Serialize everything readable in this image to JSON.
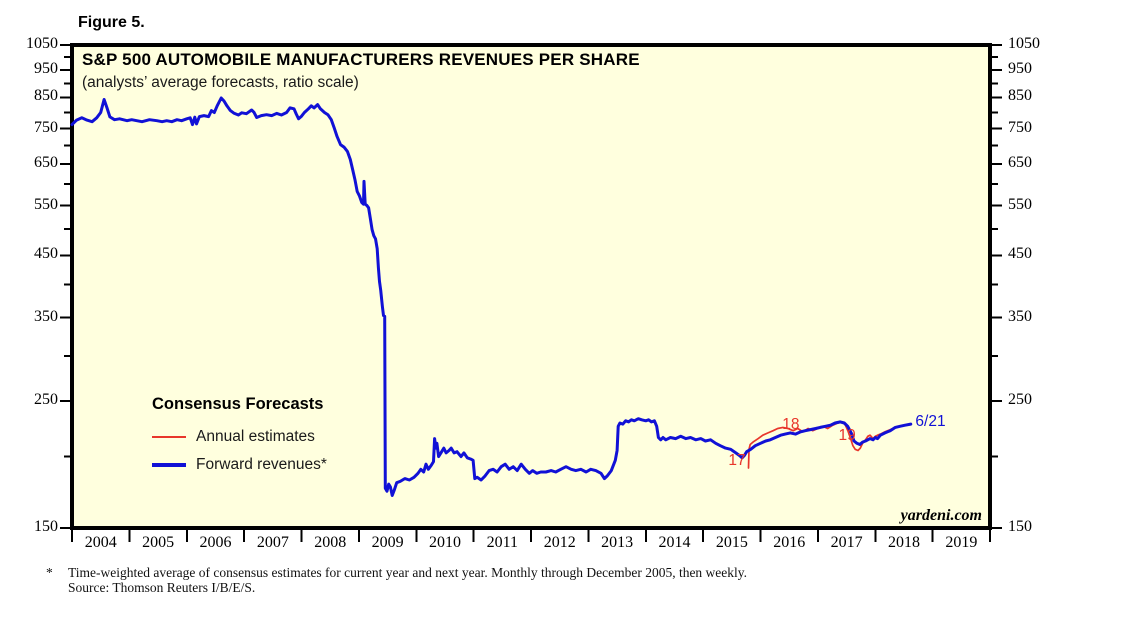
{
  "figure_label": "Figure 5.",
  "chart": {
    "title": "S&P 500 AUTOMOBILE MANUFACTURERS REVENUES PER SHARE",
    "subtitle": "(analysts’ average forecasts, ratio scale)",
    "watermark": "yardeni.com",
    "legend": {
      "title": "Consensus Forecasts",
      "items": [
        {
          "label": "Annual estimates",
          "color": "#e8362b",
          "thickness": 2
        },
        {
          "label": "Forward revenues*",
          "color": "#1111d6",
          "thickness": 4
        }
      ]
    }
  },
  "footnote": {
    "marker": "*",
    "line1": "Time-weighted average of consensus estimates for current year and next year. Monthly through December 2005, then weekly.",
    "line2": "Source: Thomson Reuters I/B/E/S."
  },
  "chart_data": {
    "type": "line",
    "title": "S&P 500 Automobile Manufacturers Revenues Per Share (analysts' average forecasts, ratio scale)",
    "x_range": [
      2004,
      2020
    ],
    "y_range": [
      150,
      1050
    ],
    "y_scale": "log",
    "grid": false,
    "plot_bg": "#ffffde",
    "frame_color": "#000000",
    "y_ticks_major": [
      150,
      250,
      350,
      450,
      550,
      650,
      750,
      850,
      950,
      1050
    ],
    "y_ticks_minor": [
      200,
      300,
      400,
      500,
      600,
      700,
      800,
      900,
      1000
    ],
    "x_tick_years": [
      "2004",
      "2005",
      "2006",
      "2007",
      "2008",
      "2009",
      "2010",
      "2011",
      "2012",
      "2013",
      "2014",
      "2015",
      "2016",
      "2017",
      "2018",
      "2019"
    ],
    "annotations": [
      {
        "text": "17",
        "t": 2015.59,
        "v": 196,
        "color": "#e8362b",
        "anchor": "middle"
      },
      {
        "text": "18",
        "t": 2016.53,
        "v": 226,
        "color": "#e8362b",
        "anchor": "middle"
      },
      {
        "text": "19",
        "t": 2017.51,
        "v": 216,
        "color": "#e8362b",
        "anchor": "middle"
      },
      {
        "text": "6/21",
        "t": 2018.7,
        "v": 229,
        "color": "#1111d6",
        "anchor": "start"
      }
    ],
    "series": [
      {
        "name": "Annual estimates",
        "color": "#e8362b",
        "width": 1.7,
        "points": [
          [
            2015.79,
            191
          ],
          [
            2015.8,
            206
          ],
          [
            2015.82,
            210
          ],
          [
            2015.87,
            212
          ],
          [
            2015.96,
            215
          ],
          [
            2016.04,
            218
          ],
          [
            2016.13,
            220
          ],
          [
            2016.22,
            222
          ],
          [
            2016.3,
            224
          ],
          [
            2016.39,
            225
          ],
          [
            2016.48,
            224
          ],
          [
            2016.57,
            222
          ],
          [
            2016.65,
            224
          ],
          [
            2016.74,
            221
          ],
          [
            2016.83,
            224
          ],
          [
            2016.91,
            222
          ],
          [
            2017.0,
            224
          ],
          [
            2017.09,
            226
          ],
          [
            2017.17,
            224
          ],
          [
            2017.26,
            227
          ],
          [
            2017.35,
            229
          ],
          [
            2017.43,
            230
          ],
          [
            2017.48,
            227
          ],
          [
            2017.53,
            221
          ],
          [
            2017.57,
            215
          ],
          [
            2017.61,
            209
          ],
          [
            2017.65,
            206
          ],
          [
            2017.7,
            205
          ],
          [
            2017.74,
            207
          ],
          [
            2017.78,
            211
          ],
          [
            2017.83,
            214
          ],
          [
            2017.87,
            217
          ],
          [
            2017.91,
            218
          ],
          [
            2017.96,
            215
          ],
          [
            2018.0,
            217
          ],
          [
            2018.04,
            218
          ],
          [
            2018.09,
            219
          ],
          [
            2018.17,
            221
          ],
          [
            2018.26,
            223
          ],
          [
            2018.35,
            225
          ],
          [
            2018.43,
            226
          ]
        ]
      },
      {
        "name": "Forward revenues*",
        "color": "#1111d6",
        "width": 3,
        "points": [
          [
            2004.0,
            762
          ],
          [
            2004.08,
            776
          ],
          [
            2004.17,
            783
          ],
          [
            2004.26,
            776
          ],
          [
            2004.35,
            771
          ],
          [
            2004.43,
            783
          ],
          [
            2004.5,
            800
          ],
          [
            2004.56,
            843
          ],
          [
            2004.61,
            815
          ],
          [
            2004.66,
            786
          ],
          [
            2004.74,
            777
          ],
          [
            2004.83,
            780
          ],
          [
            2004.96,
            774
          ],
          [
            2005.04,
            777
          ],
          [
            2005.13,
            774
          ],
          [
            2005.22,
            771
          ],
          [
            2005.35,
            777
          ],
          [
            2005.48,
            774
          ],
          [
            2005.57,
            771
          ],
          [
            2005.65,
            774
          ],
          [
            2005.74,
            771
          ],
          [
            2005.83,
            777
          ],
          [
            2005.91,
            774
          ],
          [
            2006.0,
            780
          ],
          [
            2006.06,
            783
          ],
          [
            2006.1,
            762
          ],
          [
            2006.14,
            785
          ],
          [
            2006.17,
            764
          ],
          [
            2006.22,
            787
          ],
          [
            2006.3,
            790
          ],
          [
            2006.38,
            787
          ],
          [
            2006.43,
            806
          ],
          [
            2006.48,
            800
          ],
          [
            2006.53,
            822
          ],
          [
            2006.6,
            848
          ],
          [
            2006.65,
            838
          ],
          [
            2006.7,
            822
          ],
          [
            2006.76,
            806
          ],
          [
            2006.82,
            798
          ],
          [
            2006.9,
            792
          ],
          [
            2006.96,
            799
          ],
          [
            2007.04,
            796
          ],
          [
            2007.13,
            808
          ],
          [
            2007.17,
            801
          ],
          [
            2007.22,
            784
          ],
          [
            2007.3,
            790
          ],
          [
            2007.39,
            793
          ],
          [
            2007.48,
            790
          ],
          [
            2007.57,
            797
          ],
          [
            2007.65,
            792
          ],
          [
            2007.74,
            800
          ],
          [
            2007.8,
            815
          ],
          [
            2007.87,
            812
          ],
          [
            2007.91,
            795
          ],
          [
            2007.95,
            780
          ],
          [
            2008.0,
            788
          ],
          [
            2008.05,
            800
          ],
          [
            2008.12,
            812
          ],
          [
            2008.17,
            822
          ],
          [
            2008.22,
            815
          ],
          [
            2008.28,
            826
          ],
          [
            2008.33,
            812
          ],
          [
            2008.4,
            800
          ],
          [
            2008.46,
            793
          ],
          [
            2008.52,
            777
          ],
          [
            2008.57,
            752
          ],
          [
            2008.62,
            726
          ],
          [
            2008.68,
            703
          ],
          [
            2008.74,
            696
          ],
          [
            2008.8,
            684
          ],
          [
            2008.85,
            662
          ],
          [
            2008.89,
            636
          ],
          [
            2008.93,
            611
          ],
          [
            2008.97,
            582
          ],
          [
            2009.01,
            572
          ],
          [
            2009.05,
            557
          ],
          [
            2009.08,
            553
          ],
          [
            2009.09,
            606
          ],
          [
            2009.11,
            553
          ],
          [
            2009.14,
            550
          ],
          [
            2009.17,
            545
          ],
          [
            2009.2,
            521
          ],
          [
            2009.23,
            499
          ],
          [
            2009.26,
            487
          ],
          [
            2009.29,
            481
          ],
          [
            2009.32,
            462
          ],
          [
            2009.34,
            428
          ],
          [
            2009.36,
            405
          ],
          [
            2009.38,
            391
          ],
          [
            2009.41,
            366
          ],
          [
            2009.43,
            353
          ],
          [
            2009.45,
            352
          ],
          [
            2009.46,
            176
          ],
          [
            2009.49,
            174
          ],
          [
            2009.52,
            179
          ],
          [
            2009.55,
            177
          ],
          [
            2009.58,
            171
          ],
          [
            2009.62,
            175
          ],
          [
            2009.66,
            180
          ],
          [
            2009.72,
            181
          ],
          [
            2009.8,
            183
          ],
          [
            2009.88,
            182
          ],
          [
            2009.96,
            184
          ],
          [
            2010.03,
            187
          ],
          [
            2010.08,
            190
          ],
          [
            2010.13,
            188
          ],
          [
            2010.17,
            194
          ],
          [
            2010.21,
            190
          ],
          [
            2010.26,
            193
          ],
          [
            2010.3,
            196
          ],
          [
            2010.32,
            215
          ],
          [
            2010.34,
            207
          ],
          [
            2010.36,
            211
          ],
          [
            2010.39,
            200
          ],
          [
            2010.43,
            203
          ],
          [
            2010.48,
            207
          ],
          [
            2010.52,
            203
          ],
          [
            2010.57,
            205
          ],
          [
            2010.61,
            207
          ],
          [
            2010.66,
            203
          ],
          [
            2010.71,
            204
          ],
          [
            2010.78,
            200
          ],
          [
            2010.83,
            203
          ],
          [
            2010.89,
            199
          ],
          [
            2010.95,
            198
          ],
          [
            2010.99,
            197
          ],
          [
            2011.02,
            183
          ],
          [
            2011.06,
            184
          ],
          [
            2011.13,
            182
          ],
          [
            2011.2,
            185
          ],
          [
            2011.27,
            189
          ],
          [
            2011.34,
            190
          ],
          [
            2011.41,
            188
          ],
          [
            2011.48,
            192
          ],
          [
            2011.55,
            194
          ],
          [
            2011.62,
            190
          ],
          [
            2011.69,
            192
          ],
          [
            2011.76,
            189
          ],
          [
            2011.83,
            194
          ],
          [
            2011.9,
            190
          ],
          [
            2011.97,
            187
          ],
          [
            2012.03,
            189
          ],
          [
            2012.1,
            187
          ],
          [
            2012.17,
            188
          ],
          [
            2012.26,
            188
          ],
          [
            2012.35,
            189
          ],
          [
            2012.43,
            188
          ],
          [
            2012.52,
            190
          ],
          [
            2012.61,
            192
          ],
          [
            2012.7,
            190
          ],
          [
            2012.78,
            189
          ],
          [
            2012.87,
            190
          ],
          [
            2012.96,
            188
          ],
          [
            2013.04,
            190
          ],
          [
            2013.13,
            189
          ],
          [
            2013.22,
            187
          ],
          [
            2013.28,
            183
          ],
          [
            2013.33,
            185
          ],
          [
            2013.4,
            189
          ],
          [
            2013.47,
            197
          ],
          [
            2013.5,
            205
          ],
          [
            2013.52,
            226
          ],
          [
            2013.55,
            229
          ],
          [
            2013.6,
            228
          ],
          [
            2013.65,
            231
          ],
          [
            2013.7,
            230
          ],
          [
            2013.75,
            232
          ],
          [
            2013.8,
            231
          ],
          [
            2013.87,
            233
          ],
          [
            2013.93,
            232
          ],
          [
            2014.0,
            231
          ],
          [
            2014.05,
            232
          ],
          [
            2014.1,
            230
          ],
          [
            2014.15,
            231
          ],
          [
            2014.19,
            226
          ],
          [
            2014.22,
            216
          ],
          [
            2014.26,
            214
          ],
          [
            2014.3,
            216
          ],
          [
            2014.35,
            214
          ],
          [
            2014.43,
            216
          ],
          [
            2014.52,
            215
          ],
          [
            2014.61,
            217
          ],
          [
            2014.7,
            215
          ],
          [
            2014.78,
            216
          ],
          [
            2014.87,
            214
          ],
          [
            2014.96,
            215
          ],
          [
            2015.04,
            213
          ],
          [
            2015.13,
            214
          ],
          [
            2015.22,
            211
          ],
          [
            2015.3,
            209
          ],
          [
            2015.39,
            207
          ],
          [
            2015.48,
            206
          ],
          [
            2015.57,
            203
          ],
          [
            2015.63,
            201
          ],
          [
            2015.68,
            199
          ],
          [
            2015.72,
            201
          ],
          [
            2015.76,
            204
          ],
          [
            2015.83,
            206
          ],
          [
            2015.91,
            209
          ],
          [
            2016.0,
            211
          ],
          [
            2016.09,
            213
          ],
          [
            2016.17,
            214
          ],
          [
            2016.26,
            216
          ],
          [
            2016.35,
            218
          ],
          [
            2016.43,
            219
          ],
          [
            2016.52,
            220
          ],
          [
            2016.61,
            219
          ],
          [
            2016.7,
            221
          ],
          [
            2016.78,
            222
          ],
          [
            2016.87,
            223
          ],
          [
            2016.96,
            224
          ],
          [
            2017.04,
            225
          ],
          [
            2017.13,
            226
          ],
          [
            2017.22,
            227
          ],
          [
            2017.3,
            229
          ],
          [
            2017.39,
            230
          ],
          [
            2017.46,
            229
          ],
          [
            2017.52,
            226
          ],
          [
            2017.58,
            220
          ],
          [
            2017.63,
            213
          ],
          [
            2017.68,
            211
          ],
          [
            2017.73,
            210
          ],
          [
            2017.78,
            212
          ],
          [
            2017.83,
            213
          ],
          [
            2017.91,
            215
          ],
          [
            2017.96,
            214
          ],
          [
            2018.0,
            216
          ],
          [
            2018.04,
            215
          ],
          [
            2018.09,
            218
          ],
          [
            2018.17,
            220
          ],
          [
            2018.26,
            222
          ],
          [
            2018.35,
            225
          ],
          [
            2018.43,
            226
          ],
          [
            2018.52,
            227
          ],
          [
            2018.62,
            228
          ]
        ]
      }
    ]
  }
}
